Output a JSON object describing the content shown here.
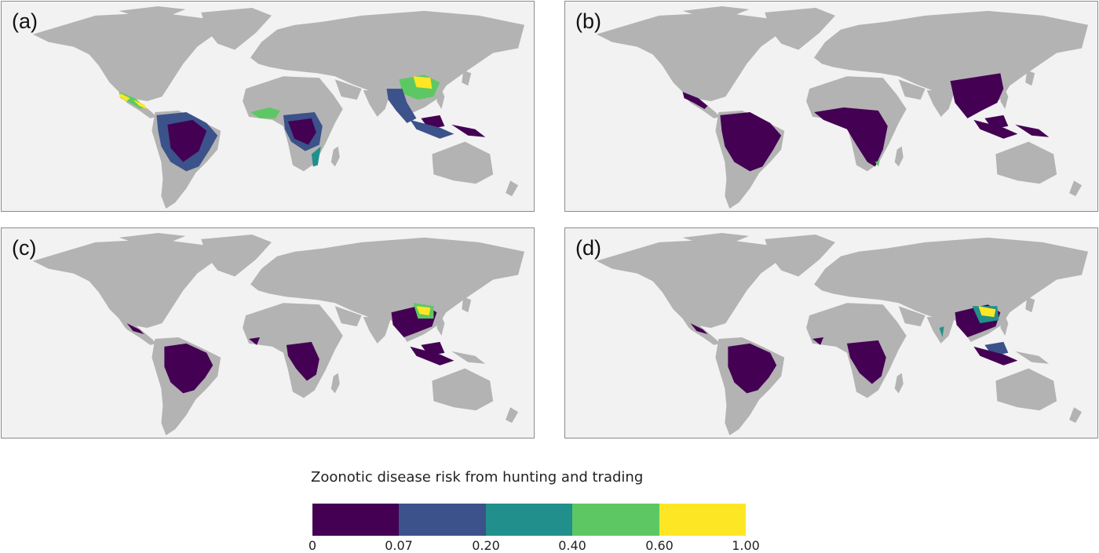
{
  "panels": [
    {
      "label": "(a)"
    },
    {
      "label": "(b)"
    },
    {
      "label": "(c)"
    },
    {
      "label": "(d)"
    }
  ],
  "colors": {
    "ocean": "#f2f2f2",
    "land": "#b3b3b3",
    "classes": [
      "#440154",
      "#3b528b",
      "#21908c",
      "#5dc863",
      "#fde725"
    ]
  },
  "legend": {
    "title": "Zoonotic disease risk from hunting and trading",
    "ticks": [
      "0",
      "0.07",
      "0.20",
      "0.40",
      "0.60",
      "1.00"
    ]
  }
}
